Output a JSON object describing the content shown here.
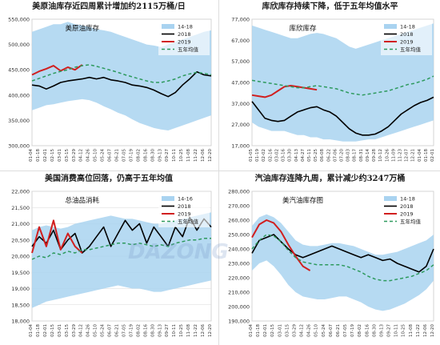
{
  "panels": [
    {
      "headline": "美原油库存近四周累计增加约2115万桶/日"
    },
    {
      "headline": "库欣库存持续下降，低于五年均值水平"
    },
    {
      "headline": "美国消费高位回落，仍高于五年均值"
    },
    {
      "headline": "汽油库存连降九周，累计减少约3247万桶"
    }
  ],
  "watermark": "DAZONG",
  "colors": {
    "band": "#a9d3f0",
    "line_2018": "#000000",
    "line_2019": "#d11f1f",
    "line_avg": "#2e9a5e"
  },
  "chart_data": [
    {
      "type": "area",
      "title": "美原油库存",
      "ylim": [
        300000,
        550000
      ],
      "yticks": [
        "300,000",
        "350,000",
        "400,000",
        "450,000",
        "500,000",
        "550,000"
      ],
      "xticks": [
        "01-04",
        "01-18",
        "02-01",
        "02-15",
        "03-01",
        "03-15",
        "03-29",
        "04-12",
        "04-26",
        "05-10",
        "05-24",
        "06-07",
        "06-21",
        "07-05",
        "07-19",
        "08-02",
        "08-16",
        "08-30",
        "09-13",
        "09-27",
        "10-11",
        "10-25",
        "11-08",
        "11-22",
        "12-06",
        "12-20"
      ],
      "legend": [
        "14-18",
        "2018",
        "2019",
        "五年均值"
      ],
      "legend_position": "top-right",
      "grid": false,
      "series": [
        {
          "name": "14-18",
          "kind": "band",
          "upper": [
            525000,
            530000,
            535000,
            540000,
            540000,
            545000,
            540000,
            538000,
            535000,
            530000,
            528000,
            525000,
            520000,
            515000,
            510000,
            505000,
            500000,
            498000,
            495000,
            500000,
            505000,
            510000,
            515000,
            520000,
            525000,
            528000
          ],
          "lower": [
            370000,
            375000,
            380000,
            382000,
            385000,
            388000,
            390000,
            392000,
            390000,
            385000,
            378000,
            372000,
            365000,
            360000,
            352000,
            345000,
            340000,
            335000,
            332000,
            330000,
            335000,
            340000,
            345000,
            350000,
            355000,
            360000
          ]
        },
        {
          "name": "2018",
          "kind": "line",
          "values": [
            420000,
            418000,
            412000,
            418000,
            425000,
            428000,
            430000,
            432000,
            435000,
            432000,
            435000,
            430000,
            428000,
            425000,
            420000,
            418000,
            415000,
            410000,
            403000,
            397000,
            405000,
            420000,
            432000,
            446000,
            440000,
            438000
          ]
        },
        {
          "name": "2019",
          "kind": "line",
          "values": [
            440000,
            447000,
            452000,
            458000,
            448000,
            455000,
            450000,
            460000
          ]
        },
        {
          "name": "五年均值",
          "kind": "line",
          "values": [
            428000,
            433000,
            438000,
            443000,
            447000,
            450000,
            455000,
            458000,
            460000,
            457000,
            453000,
            449000,
            445000,
            440000,
            436000,
            432000,
            428000,
            425000,
            425000,
            428000,
            432000,
            438000,
            442000,
            445000,
            443000,
            440000
          ]
        }
      ]
    },
    {
      "type": "area",
      "title": "库欣库存",
      "ylim": [
        17000,
        77000
      ],
      "yticks": [
        "17,000",
        "27,000",
        "37,000",
        "47,000",
        "57,000",
        "67,000",
        "77,000"
      ],
      "xticks": [
        "01-05",
        "01-19",
        "02-02",
        "02-16",
        "03-02",
        "03-16",
        "03-30",
        "04-13",
        "04-27",
        "05-11",
        "05-25",
        "06-08",
        "06-22",
        "07-06",
        "07-20",
        "08-03",
        "08-17",
        "08-31",
        "09-14",
        "09-28",
        "10-12",
        "10-26",
        "11-09",
        "11-23",
        "12-07",
        "12-21",
        "01-04",
        "01-18",
        "02-01"
      ],
      "legend": [
        "14-18",
        "2018",
        "2019",
        "五年均值"
      ],
      "legend_position": "top-right",
      "grid": false,
      "series": [
        {
          "name": "14-18",
          "kind": "band",
          "upper": [
            74000,
            73000,
            72000,
            71000,
            70000,
            69000,
            68000,
            68000,
            69000,
            70000,
            70500,
            70000,
            69000,
            68000,
            66000,
            64000,
            63000,
            64000,
            65000,
            66000,
            67000,
            68000,
            69000,
            70000,
            71000,
            72000,
            73000,
            74000,
            75000
          ],
          "lower": [
            28000,
            26000,
            25000,
            24000,
            24000,
            24000,
            23000,
            22000,
            22000,
            21000,
            21000,
            20000,
            20000,
            19500,
            19000,
            19000,
            19000,
            19500,
            20000,
            20000,
            21000,
            22000,
            23000,
            24000,
            25000,
            26000,
            27000,
            28000,
            29000
          ]
        },
        {
          "name": "2018",
          "kind": "line",
          "values": [
            38000,
            34000,
            30000,
            29000,
            28500,
            29000,
            31000,
            33000,
            34000,
            35000,
            35500,
            34000,
            33000,
            31000,
            28000,
            25000,
            23000,
            22000,
            22000,
            22500,
            24000,
            26000,
            29000,
            32000,
            34000,
            36000,
            37500,
            38500,
            40000
          ]
        },
        {
          "name": "2019",
          "kind": "line",
          "values": [
            41000,
            40500,
            40000,
            41000,
            43000,
            45000,
            45500,
            45000,
            44500,
            44000,
            43500
          ]
        },
        {
          "name": "五年均值",
          "kind": "line",
          "values": [
            48000,
            47500,
            47000,
            46500,
            46000,
            45500,
            45000,
            44500,
            44500,
            45000,
            45500,
            45000,
            44500,
            44000,
            43000,
            42000,
            41500,
            41000,
            41500,
            42000,
            42500,
            43000,
            44000,
            45000,
            46000,
            46500,
            47500,
            48500,
            50000
          ]
        }
      ]
    },
    {
      "type": "area",
      "title": "总油品消耗",
      "ylim": [
        18000,
        22000
      ],
      "yticks": [
        "18,000",
        "18,500",
        "19,000",
        "19,500",
        "20,000",
        "20,500",
        "21,000",
        "21,500",
        "22,000"
      ],
      "xticks": [
        "01-04",
        "01-18",
        "02-01",
        "02-15",
        "03-01",
        "03-15",
        "03-29",
        "04-12",
        "04-26",
        "05-10",
        "05-24",
        "06-07",
        "06-21",
        "07-05",
        "07-19",
        "08-02",
        "08-16",
        "08-30",
        "09-13",
        "09-27",
        "10-11",
        "10-25",
        "11-08",
        "11-22",
        "12-06",
        "12-20"
      ],
      "legend": [
        "14-16",
        "2018",
        "2019",
        "五年均值"
      ],
      "legend_position": "top-right",
      "grid": true,
      "series": [
        {
          "name": "14-16",
          "kind": "band",
          "upper": [
            20800,
            20900,
            20950,
            20900,
            20850,
            20900,
            21000,
            21050,
            21100,
            21150,
            21200,
            21250,
            21200,
            21150,
            21150,
            21100,
            21050,
            21000,
            21000,
            21050,
            21100,
            21150,
            21200,
            21250,
            21300,
            21350
          ],
          "lower": [
            18400,
            18500,
            18600,
            18650,
            18700,
            18750,
            18800,
            18850,
            18900,
            18950,
            19000,
            19050,
            19100,
            19050,
            19000,
            19000,
            18950,
            18900,
            18900,
            18950,
            19000,
            19050,
            19100,
            19150,
            19200,
            19250
          ]
        },
        {
          "name": "2018",
          "kind": "line",
          "values": [
            20300,
            20600,
            20400,
            20800,
            20200,
            20500,
            20700,
            20100,
            20300,
            20600,
            20900,
            20300,
            20700,
            21100,
            20800,
            21000,
            20400,
            20900,
            20600,
            20300,
            20900,
            20600,
            21200,
            20800,
            21150,
            20900
          ]
        },
        {
          "name": "2019",
          "kind": "line",
          "values": [
            20100,
            20900,
            20300,
            21100,
            20200,
            20700,
            20300,
            20100
          ]
        },
        {
          "name": "五年均值",
          "kind": "line",
          "values": [
            19900,
            20000,
            19950,
            20100,
            20050,
            20150,
            20100,
            20200,
            20200,
            20250,
            20300,
            20350,
            20400,
            20400,
            20350,
            20400,
            20350,
            20300,
            20350,
            20300,
            20400,
            20450,
            20500,
            20500,
            20550,
            20550
          ]
        }
      ]
    },
    {
      "type": "area",
      "title": "美汽油库存图",
      "ylim": [
        190000,
        280000
      ],
      "yticks": [
        "190,000",
        "200,000",
        "210,000",
        "220,000",
        "230,000",
        "240,000",
        "250,000",
        "260,000",
        "270,000",
        "280,000"
      ],
      "xticks": [
        "01-04",
        "01-18",
        "02-01",
        "02-15",
        "03-01",
        "03-15",
        "03-29",
        "04-12",
        "04-26",
        "05-10",
        "05-24",
        "06-07",
        "06-21",
        "07-05",
        "07-19",
        "08-02",
        "08-16",
        "08-30",
        "09-13",
        "09-27",
        "10-11",
        "10-25",
        "11-08",
        "11-22",
        "12-06",
        "12-20"
      ],
      "legend": [
        "14-18",
        "2018",
        "2019",
        "五年均值"
      ],
      "legend_position": "top-right",
      "grid": false,
      "series": [
        {
          "name": "14-18",
          "kind": "band",
          "upper": [
            256000,
            262000,
            264000,
            262000,
            258000,
            252000,
            246000,
            243000,
            242000,
            242000,
            243000,
            244000,
            244000,
            243000,
            242000,
            240000,
            238000,
            236000,
            236000,
            237000,
            238000,
            240000,
            242000,
            244000,
            246000,
            250000
          ],
          "lower": [
            225000,
            230000,
            232000,
            228000,
            222000,
            215000,
            210000,
            207000,
            206000,
            205000,
            205000,
            206000,
            207000,
            207000,
            205000,
            203000,
            200000,
            198000,
            197000,
            198000,
            200000,
            202000,
            205000,
            208000,
            212000,
            218000
          ]
        },
        {
          "name": "2018",
          "kind": "line",
          "values": [
            237000,
            246000,
            248000,
            250000,
            245000,
            240000,
            236000,
            234000,
            236000,
            238000,
            240000,
            242000,
            240000,
            238000,
            236000,
            234000,
            236000,
            234000,
            232000,
            233000,
            230000,
            228000,
            226000,
            224000,
            228000,
            240000
          ]
        },
        {
          "name": "2019",
          "kind": "line",
          "values": [
            248000,
            257000,
            260000,
            258000,
            252000,
            243000,
            235000,
            228000,
            225000
          ]
        },
        {
          "name": "五年均值",
          "kind": "line",
          "values": [
            240000,
            246000,
            250000,
            249000,
            245000,
            239000,
            234000,
            231000,
            230000,
            229000,
            229000,
            229000,
            229000,
            228000,
            226000,
            224000,
            221000,
            219000,
            218000,
            218000,
            219000,
            220000,
            221000,
            223000,
            225000,
            229000
          ]
        }
      ]
    }
  ]
}
